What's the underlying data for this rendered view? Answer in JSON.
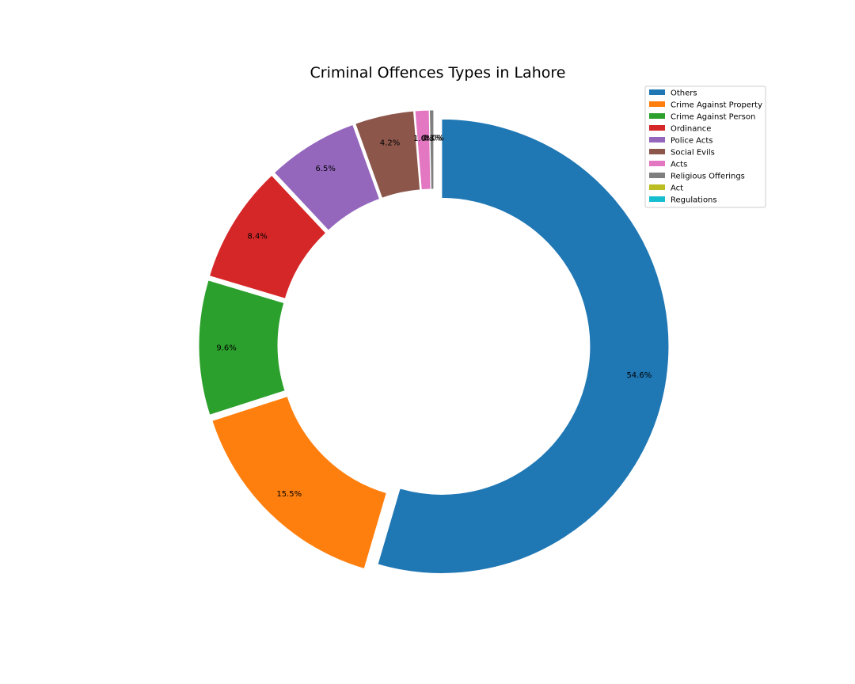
{
  "chart_data": {
    "type": "pie",
    "style": "donut",
    "title": "Criminal Offences Types in Lahore",
    "start_angle_deg": 90,
    "direction": "clockwise",
    "legend_position": "top-right",
    "slices": [
      {
        "label": "Others",
        "value": 54.6,
        "pct_label": "54.6%",
        "color": "#1f77b4"
      },
      {
        "label": "Crime Against Property",
        "value": 15.5,
        "pct_label": "15.5%",
        "color": "#ff7f0e"
      },
      {
        "label": "Crime Against Person",
        "value": 9.6,
        "pct_label": "9.6%",
        "color": "#2ca02c"
      },
      {
        "label": "Ordinance",
        "value": 8.4,
        "pct_label": "8.4%",
        "color": "#d62728"
      },
      {
        "label": "Police Acts",
        "value": 6.5,
        "pct_label": "6.5%",
        "color": "#9467bd"
      },
      {
        "label": "Social Evils",
        "value": 4.2,
        "pct_label": "4.2%",
        "color": "#8c564b"
      },
      {
        "label": "Acts",
        "value": 1.0,
        "pct_label": "1.0%",
        "color": "#e377c2"
      },
      {
        "label": "Religious Offerings",
        "value": 0.3,
        "pct_label": "0.3%",
        "color": "#7f7f7f"
      },
      {
        "label": "Act",
        "value": 0.0,
        "pct_label": "0.0%",
        "color": "#bcbd22"
      },
      {
        "label": "Regulations",
        "value": 0.0,
        "pct_label": "0.0%",
        "color": "#17becf"
      }
    ]
  }
}
